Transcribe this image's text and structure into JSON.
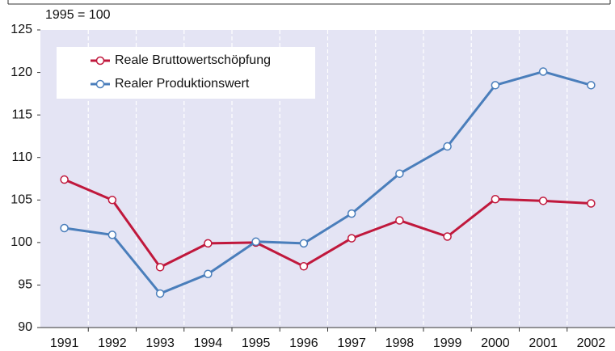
{
  "chart_data": {
    "type": "line",
    "subtitle": "1995 = 100",
    "categories": [
      "1991",
      "1992",
      "1993",
      "1994",
      "1995",
      "1996",
      "1997",
      "1998",
      "1999",
      "2000",
      "2001",
      "2002"
    ],
    "series": [
      {
        "name": "Reale Bruttowertschöpfung",
        "color": "#c0183c",
        "values": [
          107.4,
          105.0,
          97.1,
          99.9,
          100.0,
          97.2,
          100.5,
          102.6,
          100.7,
          105.1,
          104.9,
          104.6
        ]
      },
      {
        "name": "Realer Produktionswert",
        "color": "#4a7ebb",
        "values": [
          101.7,
          100.9,
          94.0,
          96.3,
          100.1,
          99.9,
          103.4,
          108.1,
          111.3,
          118.5,
          120.1,
          118.5
        ]
      }
    ],
    "ylim": [
      90,
      125
    ],
    "yticks": [
      90,
      95,
      100,
      105,
      110,
      115,
      120,
      125
    ],
    "legend": "upper left",
    "grid": true
  }
}
